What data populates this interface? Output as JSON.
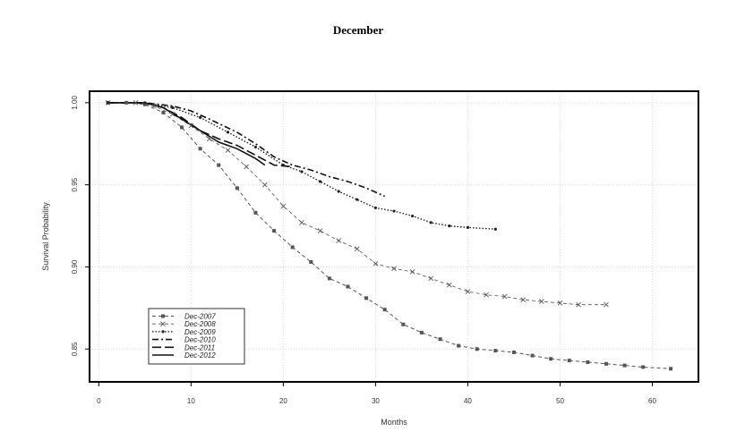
{
  "chart_data": {
    "type": "line",
    "title": "December",
    "xlabel": "Months",
    "ylabel": "Survival Probability",
    "xlim": [
      -1,
      65
    ],
    "ylim": [
      0.83,
      1.007
    ],
    "x_ticks": [
      0,
      10,
      20,
      30,
      40,
      50,
      60
    ],
    "y_ticks": [
      1.0,
      0.95,
      0.9,
      0.85
    ],
    "y_tick_labels": [
      "1.00",
      "0.95",
      "0.90",
      "0.85"
    ],
    "grid": true,
    "legend_position": "bottom-left",
    "series": [
      {
        "name": "Dec-2007",
        "style": "dash-square",
        "points": [
          [
            1,
            1.0
          ],
          [
            3,
            1.0
          ],
          [
            5,
            0.999
          ],
          [
            7,
            0.994
          ],
          [
            9,
            0.985
          ],
          [
            11,
            0.972
          ],
          [
            13,
            0.962
          ],
          [
            15,
            0.948
          ],
          [
            17,
            0.933
          ],
          [
            19,
            0.922
          ],
          [
            21,
            0.912
          ],
          [
            23,
            0.903
          ],
          [
            25,
            0.893
          ],
          [
            27,
            0.888
          ],
          [
            29,
            0.881
          ],
          [
            31,
            0.874
          ],
          [
            33,
            0.865
          ],
          [
            35,
            0.86
          ],
          [
            37,
            0.856
          ],
          [
            39,
            0.852
          ],
          [
            41,
            0.85
          ],
          [
            43,
            0.849
          ],
          [
            45,
            0.848
          ],
          [
            47,
            0.846
          ],
          [
            49,
            0.844
          ],
          [
            51,
            0.843
          ],
          [
            53,
            0.842
          ],
          [
            55,
            0.841
          ],
          [
            57,
            0.84
          ],
          [
            59,
            0.839
          ],
          [
            62,
            0.838
          ]
        ]
      },
      {
        "name": "Dec-2008",
        "style": "dash-x",
        "points": [
          [
            1,
            1.0
          ],
          [
            4,
            1.0
          ],
          [
            6,
            0.998
          ],
          [
            8,
            0.993
          ],
          [
            10,
            0.986
          ],
          [
            12,
            0.978
          ],
          [
            14,
            0.971
          ],
          [
            16,
            0.961
          ],
          [
            18,
            0.95
          ],
          [
            20,
            0.937
          ],
          [
            22,
            0.927
          ],
          [
            24,
            0.922
          ],
          [
            26,
            0.916
          ],
          [
            28,
            0.911
          ],
          [
            30,
            0.902
          ],
          [
            32,
            0.899
          ],
          [
            34,
            0.897
          ],
          [
            36,
            0.893
          ],
          [
            38,
            0.889
          ],
          [
            40,
            0.885
          ],
          [
            42,
            0.883
          ],
          [
            44,
            0.882
          ],
          [
            46,
            0.88
          ],
          [
            48,
            0.879
          ],
          [
            50,
            0.878
          ],
          [
            52,
            0.877
          ],
          [
            55,
            0.877
          ]
        ]
      },
      {
        "name": "Dec-2009",
        "style": "dot-circle",
        "points": [
          [
            1,
            1.0
          ],
          [
            5,
            1.0
          ],
          [
            8,
            0.997
          ],
          [
            11,
            0.991
          ],
          [
            14,
            0.982
          ],
          [
            17,
            0.973
          ],
          [
            20,
            0.962
          ],
          [
            22,
            0.958
          ],
          [
            24,
            0.952
          ],
          [
            26,
            0.946
          ],
          [
            28,
            0.941
          ],
          [
            30,
            0.936
          ],
          [
            32,
            0.934
          ],
          [
            34,
            0.931
          ],
          [
            36,
            0.927
          ],
          [
            38,
            0.925
          ],
          [
            40,
            0.924
          ],
          [
            43,
            0.923
          ]
        ]
      },
      {
        "name": "Dec-2010",
        "style": "dot-dash",
        "points": [
          [
            1,
            1.0
          ],
          [
            5,
            1.0
          ],
          [
            8,
            0.998
          ],
          [
            10,
            0.995
          ],
          [
            12,
            0.99
          ],
          [
            15,
            0.982
          ],
          [
            17,
            0.975
          ],
          [
            19,
            0.967
          ],
          [
            21,
            0.962
          ],
          [
            23,
            0.959
          ],
          [
            25,
            0.955
          ],
          [
            27,
            0.952
          ],
          [
            29,
            0.948
          ],
          [
            31,
            0.943
          ]
        ]
      },
      {
        "name": "Dec-2011",
        "style": "long-dash",
        "points": [
          [
            1,
            1.0
          ],
          [
            5,
            1.0
          ],
          [
            7,
            0.997
          ],
          [
            9,
            0.991
          ],
          [
            11,
            0.983
          ],
          [
            13,
            0.978
          ],
          [
            15,
            0.974
          ],
          [
            17,
            0.968
          ],
          [
            19,
            0.962
          ],
          [
            21,
            0.961
          ]
        ]
      },
      {
        "name": "Dec-2012",
        "style": "solid",
        "points": [
          [
            1,
            1.0
          ],
          [
            5,
            1.0
          ],
          [
            7,
            0.997
          ],
          [
            9,
            0.99
          ],
          [
            11,
            0.983
          ],
          [
            13,
            0.976
          ],
          [
            15,
            0.972
          ],
          [
            17,
            0.966
          ],
          [
            18,
            0.962
          ]
        ]
      }
    ]
  }
}
